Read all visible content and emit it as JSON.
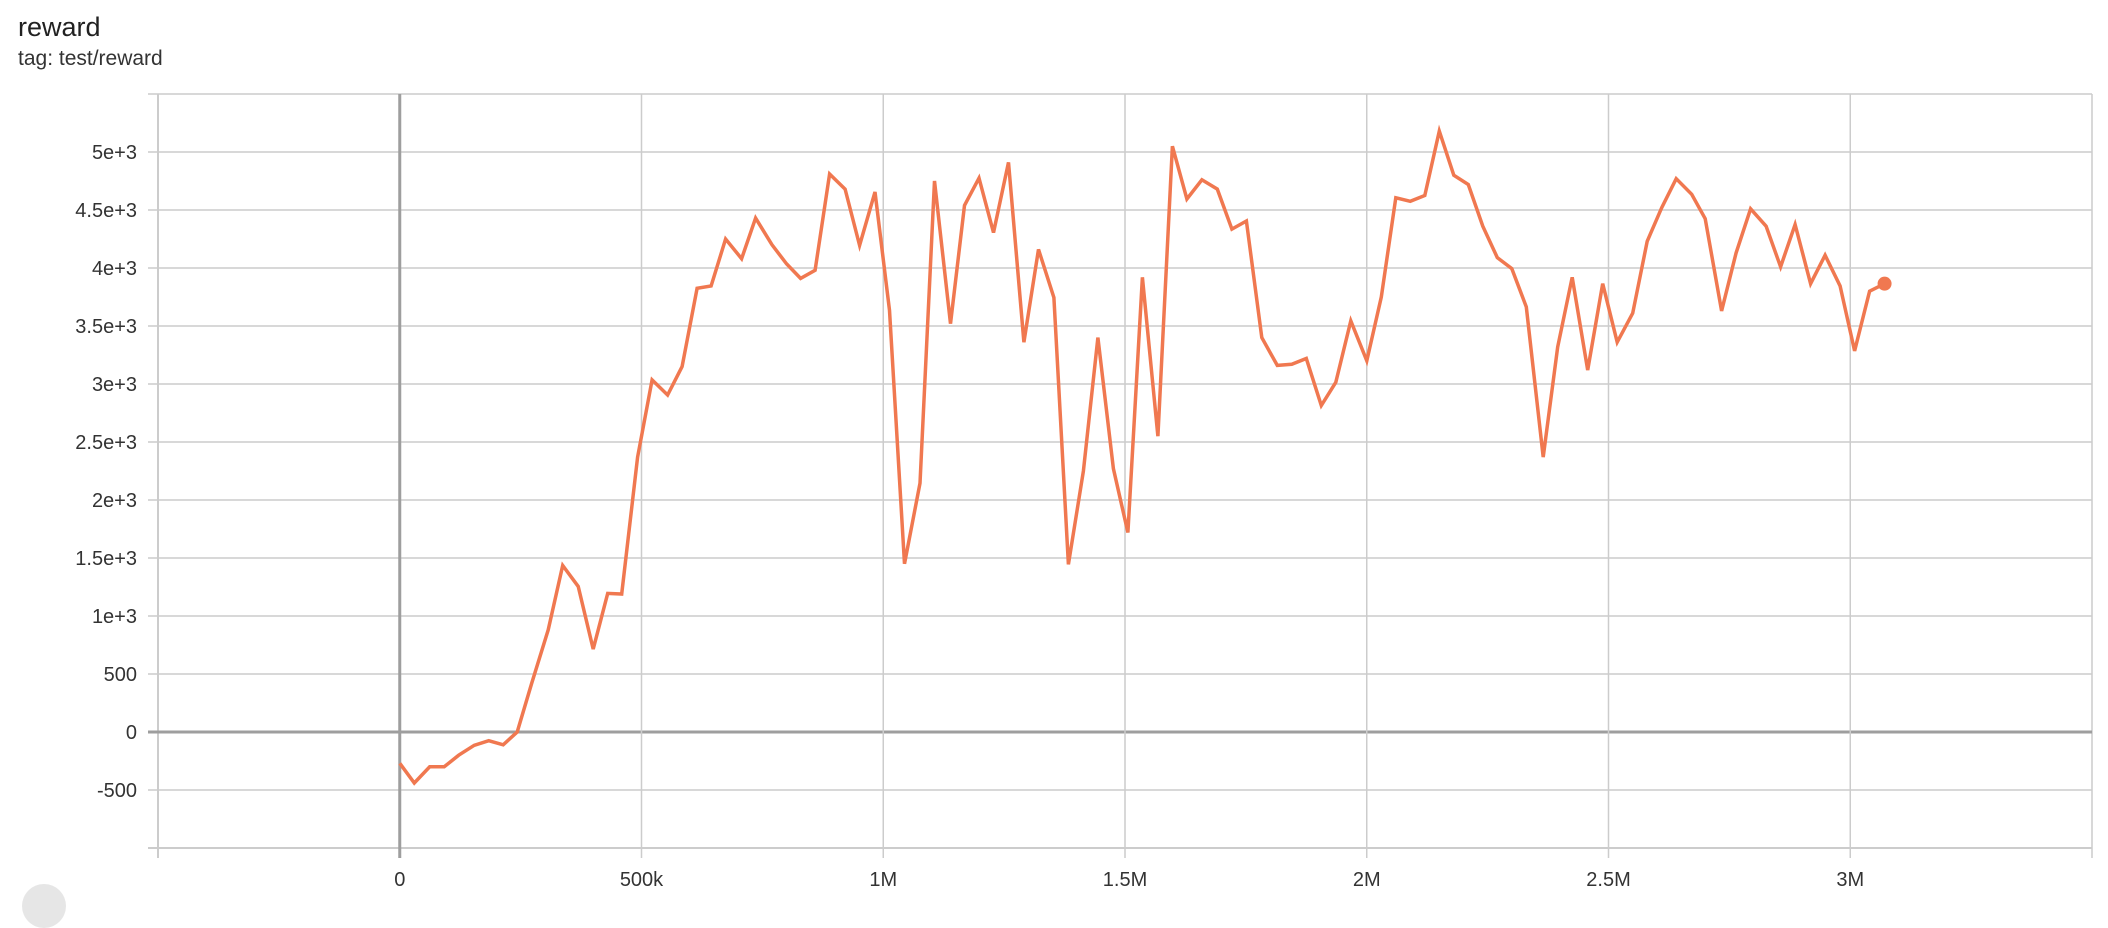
{
  "header": {
    "title": "reward",
    "tag": "tag: test/reward"
  },
  "colors": {
    "series": "#f07850",
    "grid": "#cccccc",
    "zero_axis": "#9e9e9e"
  },
  "chart_data": {
    "type": "line",
    "title": "reward",
    "subtitle": "tag: test/reward",
    "xlabel": "",
    "ylabel": "",
    "xlim": [
      -500000,
      3500000
    ],
    "ylim": [
      -1000,
      5500
    ],
    "grid": true,
    "x_ticks": [
      {
        "value": 0,
        "label": "0"
      },
      {
        "value": 500000,
        "label": "500k"
      },
      {
        "value": 1000000,
        "label": "1M"
      },
      {
        "value": 1500000,
        "label": "1.5M"
      },
      {
        "value": 2000000,
        "label": "2M"
      },
      {
        "value": 2500000,
        "label": "2.5M"
      },
      {
        "value": 3000000,
        "label": "3M"
      }
    ],
    "y_ticks": [
      {
        "value": -500,
        "label": "-500"
      },
      {
        "value": 0,
        "label": "0"
      },
      {
        "value": 500,
        "label": "500"
      },
      {
        "value": 1000,
        "label": "1e+3"
      },
      {
        "value": 1500,
        "label": "1.5e+3"
      },
      {
        "value": 2000,
        "label": "2e+3"
      },
      {
        "value": 2500,
        "label": "2.5e+3"
      },
      {
        "value": 3000,
        "label": "3e+3"
      },
      {
        "value": 3500,
        "label": "3.5e+3"
      },
      {
        "value": 4000,
        "label": "4e+3"
      },
      {
        "value": 4500,
        "label": "4.5e+3"
      },
      {
        "value": 5000,
        "label": "5e+3"
      }
    ],
    "series": [
      {
        "x": [
          0,
          30000,
          62000,
          92000,
          122000,
          154000,
          184000,
          214000,
          243000,
          273000,
          307000,
          337000,
          369000,
          400000,
          430000,
          459000,
          492000,
          522000,
          554000,
          584000,
          615000,
          644000,
          674000,
          707000,
          736000,
          770000,
          800000,
          829000,
          859000,
          889000,
          921000,
          951000,
          983000,
          1013000,
          1044000,
          1076000,
          1106000,
          1139000,
          1168000,
          1198000,
          1228000,
          1259000,
          1291000,
          1321000,
          1353000,
          1383000,
          1414000,
          1444000,
          1476000,
          1506000,
          1536000,
          1568000,
          1598000,
          1628000,
          1659000,
          1691000,
          1721000,
          1751000,
          1783000,
          1815000,
          1845000,
          1875000,
          1906000,
          1936000,
          1967000,
          2000000,
          2030000,
          2060000,
          2090000,
          2120000,
          2150000,
          2180000,
          2210000,
          2240000,
          2270000,
          2300000,
          2330000,
          2365000,
          2395000,
          2425000,
          2457000,
          2488000,
          2518000,
          2550000,
          2580000,
          2610000,
          2640000,
          2672000,
          2700000,
          2734000,
          2764000,
          2794000,
          2826000,
          2856000,
          2886000,
          2918000,
          2948000,
          2979000,
          3009000,
          3040000,
          3071000
        ],
        "y": [
          -270,
          -440,
          -300,
          -300,
          -200,
          -115,
          -75,
          -110,
          0,
          420,
          880,
          1435,
          1255,
          715,
          1195,
          1190,
          2370,
          3035,
          2905,
          3150,
          3825,
          3845,
          4250,
          4080,
          4430,
          4200,
          4035,
          3910,
          3980,
          4810,
          4680,
          4195,
          4655,
          3635,
          1450,
          2145,
          4750,
          3520,
          4540,
          4775,
          4305,
          4910,
          3360,
          4160,
          3745,
          1445,
          2250,
          3400,
          2270,
          1720,
          3920,
          2550,
          5050,
          4595,
          4760,
          4680,
          4335,
          4405,
          3400,
          3160,
          3170,
          3220,
          2815,
          3015,
          3545,
          3200,
          3750,
          4605,
          4575,
          4625,
          5180,
          4800,
          4720,
          4360,
          4090,
          3995,
          3665,
          2370,
          3320,
          3920,
          3120,
          3865,
          3360,
          3610,
          4230,
          4520,
          4770,
          4635,
          4425,
          3630,
          4130,
          4510,
          4360,
          4010,
          4375,
          3865,
          4110,
          3845,
          3285,
          3800,
          3865
        ]
      }
    ]
  }
}
